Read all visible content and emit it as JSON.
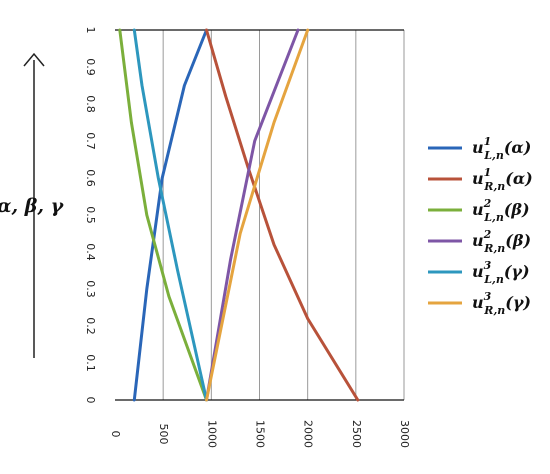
{
  "chart_data": {
    "type": "line",
    "ylabel": "α, β, γ",
    "xlim": [
      0,
      3000
    ],
    "ylim": [
      0,
      1
    ],
    "grid": true,
    "legend_position": "right",
    "x_ticks": [
      0,
      500,
      1000,
      1500,
      2000,
      2500,
      3000
    ],
    "y_ticks": [
      0,
      0.1,
      0.2,
      0.3,
      0.4,
      0.5,
      0.6,
      0.7,
      0.8,
      0.9,
      1
    ],
    "series": [
      {
        "name": "u¹L,n(α)",
        "base": "u",
        "sup": "1",
        "sub": "L,n",
        "arg": "(α)",
        "color": "#2A66B8",
        "points": [
          [
            200,
            0
          ],
          [
            330,
            0.3
          ],
          [
            490,
            0.6
          ],
          [
            720,
            0.85
          ],
          [
            950,
            1
          ]
        ]
      },
      {
        "name": "u¹R,n(α)",
        "base": "u",
        "sup": "1",
        "sub": "R,n",
        "arg": "(α)",
        "color": "#B8523A",
        "points": [
          [
            950,
            1
          ],
          [
            1150,
            0.82
          ],
          [
            1380,
            0.63
          ],
          [
            1650,
            0.42
          ],
          [
            2000,
            0.22
          ],
          [
            2520,
            0
          ]
        ]
      },
      {
        "name": "u²L,n(β)",
        "base": "u",
        "sup": "2",
        "sub": "L,n",
        "arg": "(β)",
        "color": "#7BAF3B",
        "points": [
          [
            50,
            1
          ],
          [
            170,
            0.75
          ],
          [
            330,
            0.5
          ],
          [
            560,
            0.28
          ],
          [
            950,
            0
          ]
        ]
      },
      {
        "name": "u²R,n(β)",
        "base": "u",
        "sup": "2",
        "sub": "R,n",
        "arg": "(β)",
        "color": "#7E56A6",
        "points": [
          [
            950,
            0
          ],
          [
            1200,
            0.38
          ],
          [
            1450,
            0.7
          ],
          [
            1900,
            1
          ]
        ]
      },
      {
        "name": "u³L,n(γ)",
        "base": "u",
        "sup": "3",
        "sub": "L,n",
        "arg": "(γ)",
        "color": "#2D97BE",
        "points": [
          [
            200,
            1
          ],
          [
            280,
            0.85
          ],
          [
            450,
            0.6
          ],
          [
            650,
            0.35
          ],
          [
            950,
            0
          ]
        ]
      },
      {
        "name": "u³R,n(γ)",
        "base": "u",
        "sup": "3",
        "sub": "R,n",
        "arg": "(γ)",
        "color": "#E5A43F",
        "points": [
          [
            950,
            0
          ],
          [
            1300,
            0.45
          ],
          [
            1650,
            0.75
          ],
          [
            2000,
            1
          ]
        ]
      }
    ]
  }
}
